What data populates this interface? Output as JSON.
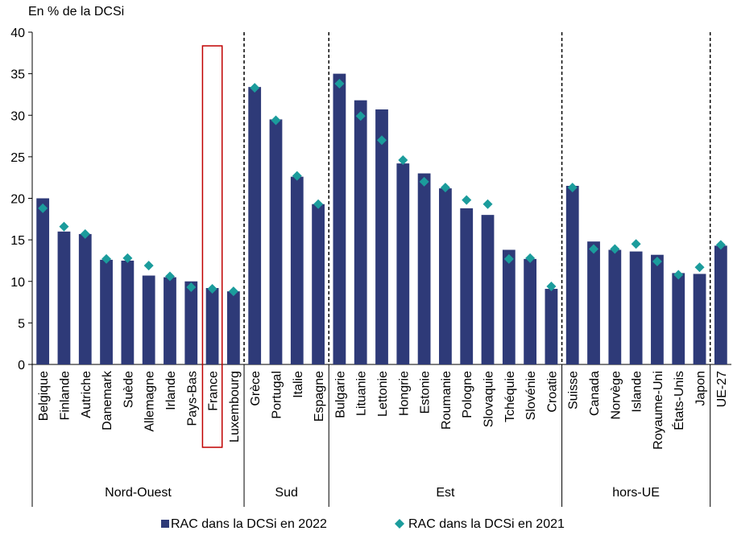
{
  "chart_data": {
    "type": "bar",
    "unit_label": "En % de la DCSi",
    "ylim": [
      0,
      40
    ],
    "yticks": [
      "0",
      "5",
      "10",
      "15",
      "20",
      "25",
      "30",
      "35",
      "40"
    ],
    "categories": [
      "Belgique",
      "Finlande",
      "Autriche",
      "Danemark",
      "Suède",
      "Allemagne",
      "Irlande",
      "Pays-Bas",
      "France",
      "Luxembourg",
      "Grèce",
      "Portugal",
      "Italie",
      "Espagne",
      "Bulgarie",
      "Lituanie",
      "Lettonie",
      "Hongrie",
      "Estonie",
      "Roumanie",
      "Pologne",
      "Slovaquie",
      "Tchéquie",
      "Slovénie",
      "Croatie",
      "Suisse",
      "Canada",
      "Norvège",
      "Islande",
      "Royaume-Uni",
      "États-Unis",
      "Japon",
      "UE-27"
    ],
    "series": [
      {
        "name": "RAC dans la DCSi en 2022",
        "kind": "bar",
        "color": "#2E3A78",
        "values": [
          20.0,
          16.0,
          15.7,
          12.6,
          12.5,
          10.7,
          10.5,
          10.0,
          9.2,
          8.8,
          33.4,
          29.5,
          22.6,
          19.3,
          35.0,
          31.8,
          30.7,
          24.2,
          23.0,
          21.2,
          18.8,
          18.0,
          13.8,
          12.7,
          9.1,
          21.5,
          14.8,
          13.8,
          13.6,
          13.2,
          11.0,
          10.9,
          14.3
        ]
      },
      {
        "name": "RAC dans la DCSi en 2021",
        "kind": "marker",
        "color": "#1B9C9C",
        "values": [
          18.8,
          16.6,
          15.7,
          12.7,
          12.8,
          11.9,
          10.6,
          9.3,
          9.1,
          8.8,
          33.3,
          29.4,
          22.7,
          19.3,
          33.8,
          29.9,
          27.0,
          24.6,
          22.0,
          21.3,
          19.8,
          19.3,
          12.7,
          12.8,
          9.4,
          21.3,
          13.9,
          13.9,
          14.5,
          12.4,
          10.8,
          11.7,
          14.4
        ]
      }
    ],
    "groups": [
      {
        "label": "Nord-Ouest",
        "start": 0,
        "end": 9
      },
      {
        "label": "Sud",
        "start": 10,
        "end": 13
      },
      {
        "label": "Est",
        "start": 14,
        "end": 24
      },
      {
        "label": "hors-UE",
        "start": 25,
        "end": 31
      },
      {
        "label": "",
        "start": 32,
        "end": 32
      }
    ],
    "highlight": "France",
    "highlight_color": "#C00000",
    "grid": false,
    "legend": "bottom"
  }
}
